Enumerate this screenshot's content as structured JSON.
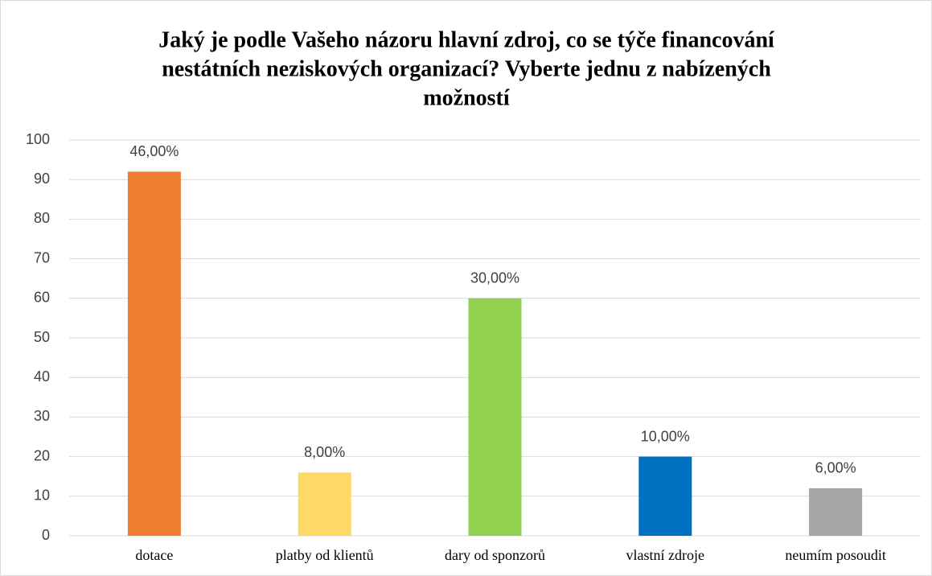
{
  "chart_data": {
    "type": "bar",
    "title": [
      "Jaký je podle Vašeho názoru hlavní zdroj, co se týče financování",
      "nestátních neziskových organizací? Vyberte jednu z nabízených",
      "možností"
    ],
    "categories": [
      "dotace",
      "platby od klientů",
      "dary od sponzorů",
      "vlastní zdroje",
      "neumím posoudit"
    ],
    "values": [
      92,
      16,
      60,
      20,
      12
    ],
    "value_labels": [
      "46,00%",
      "8,00%",
      "30,00%",
      "10,00%",
      "6,00%"
    ],
    "colors": [
      "#ed7d31",
      "#ffd966",
      "#92d050",
      "#0070c0",
      "#a5a5a5"
    ],
    "ylim": [
      0,
      100
    ],
    "yticks": [
      0,
      10,
      20,
      30,
      40,
      50,
      60,
      70,
      80,
      90,
      100
    ],
    "grid": true
  }
}
